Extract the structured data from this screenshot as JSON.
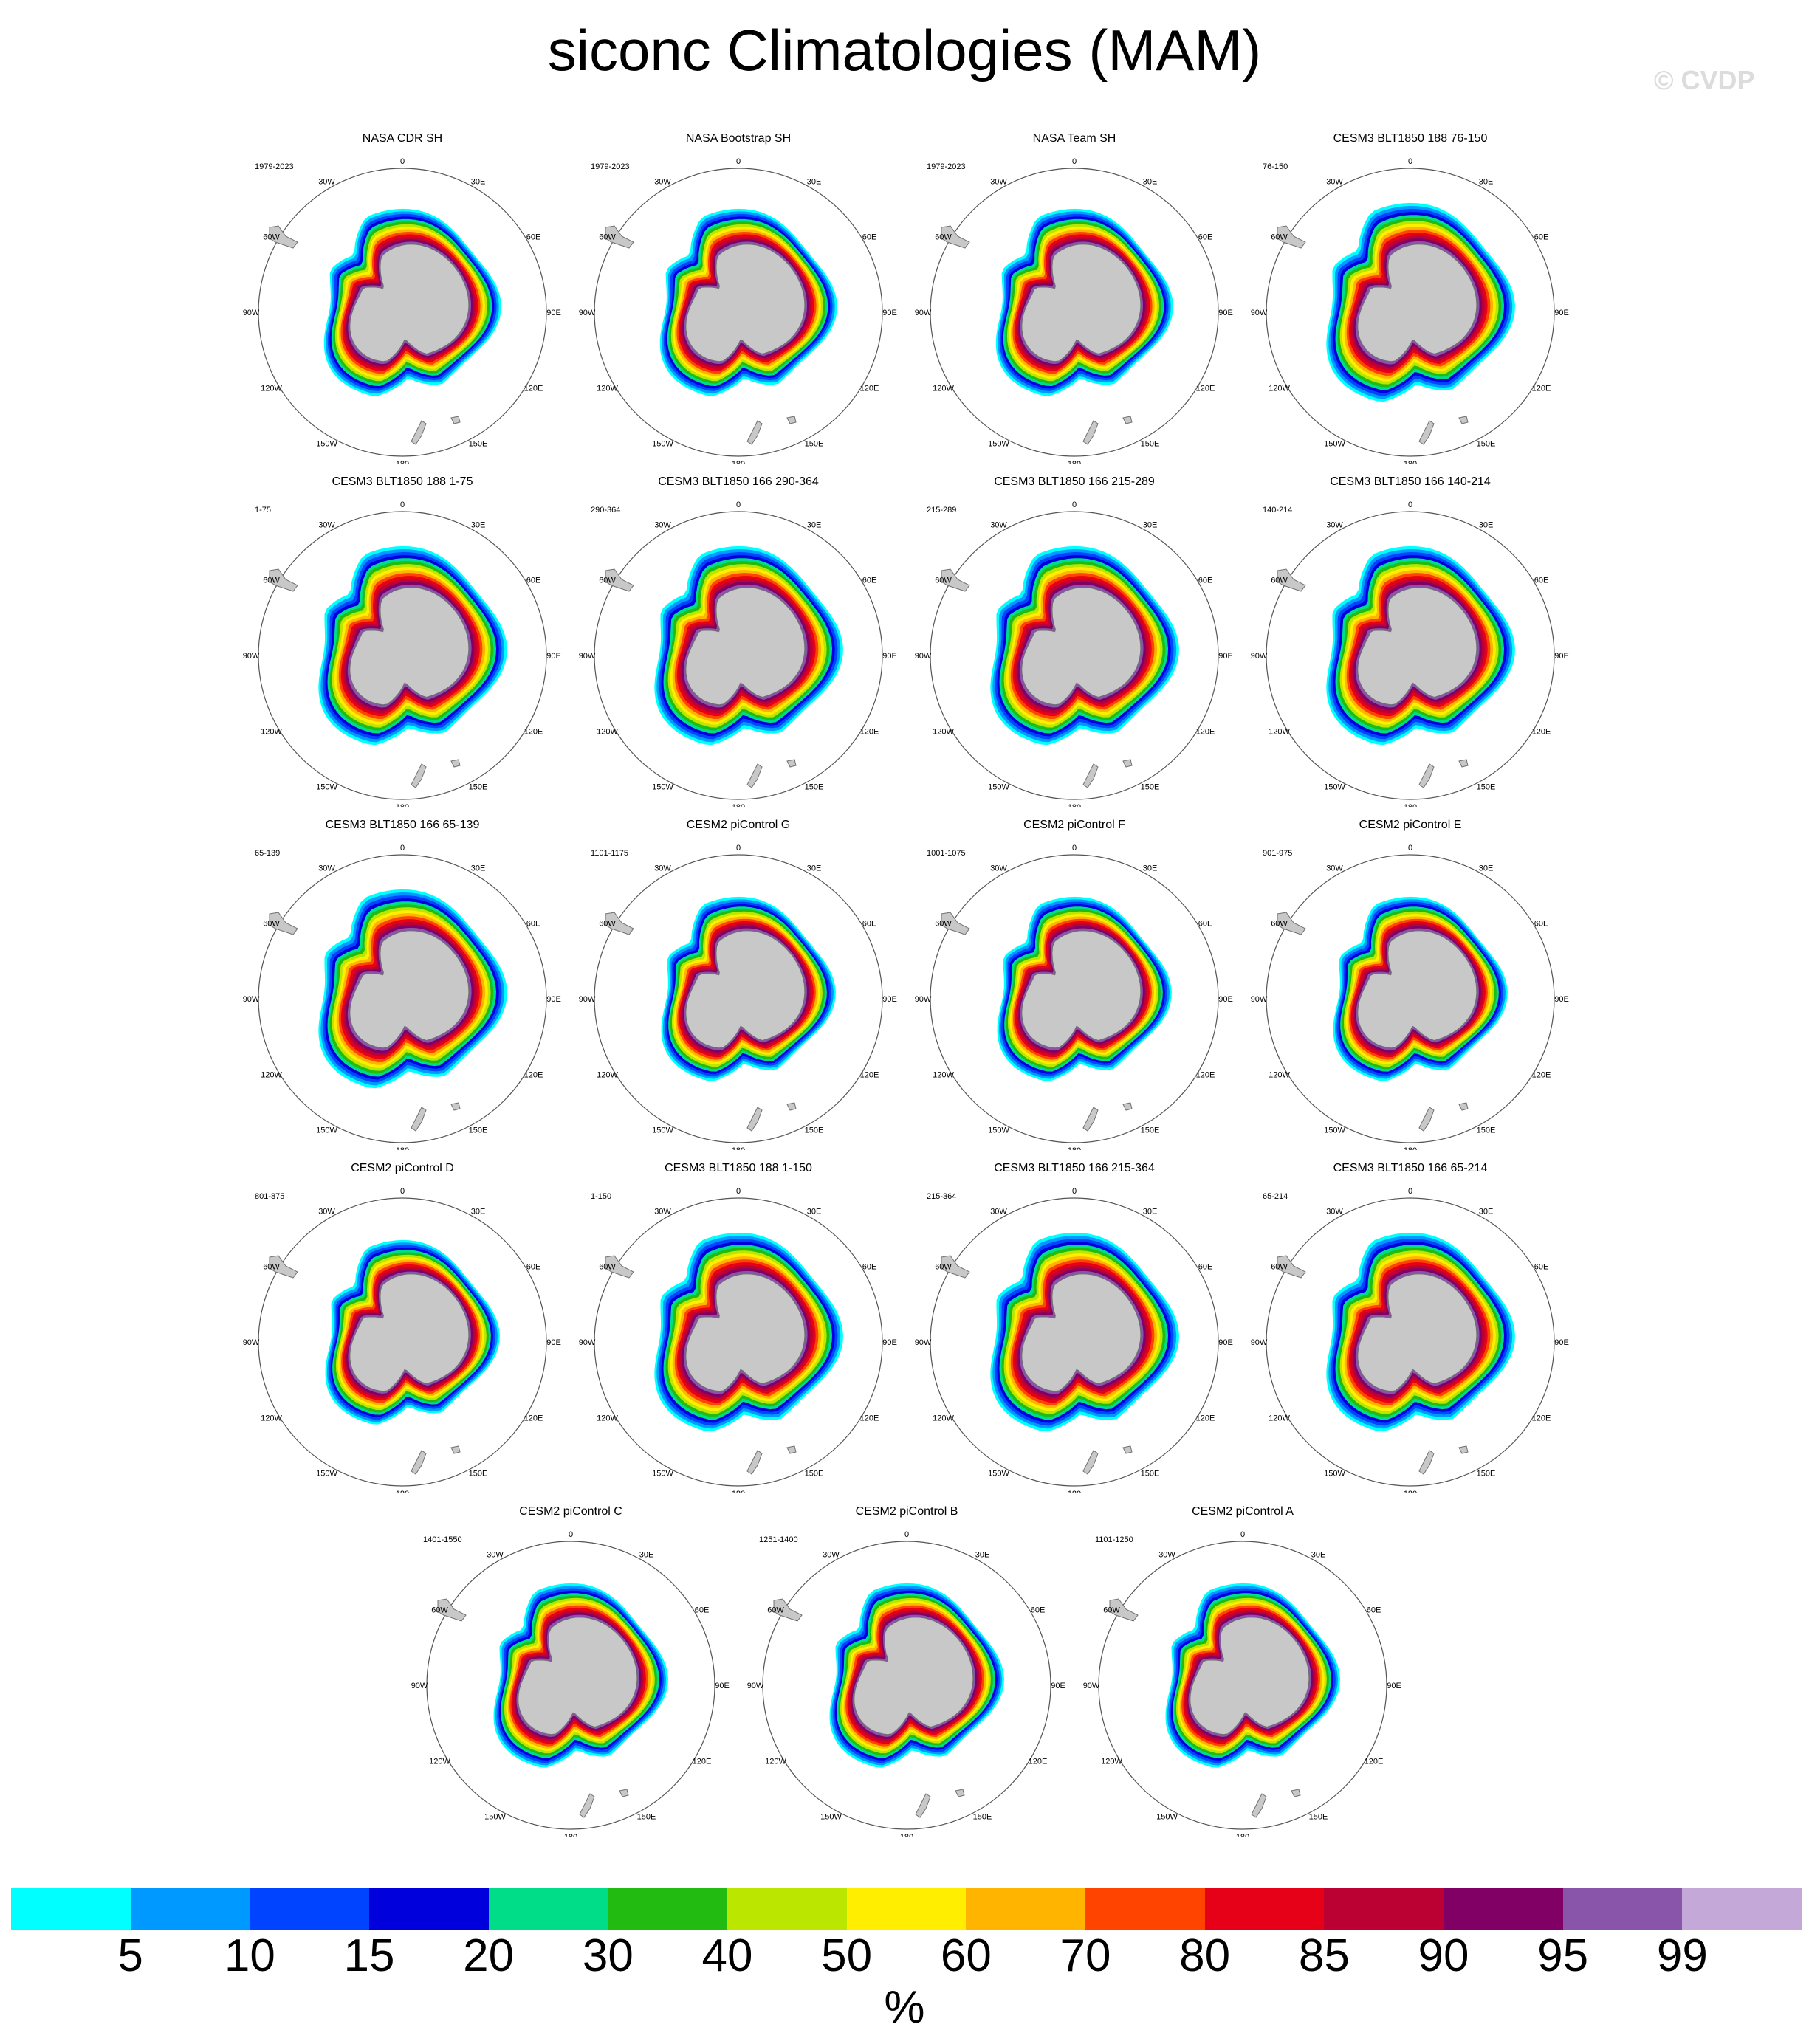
{
  "title": "siconc Climatologies (MAM)",
  "watermark": "© CVDP",
  "lon_labels": [
    "0",
    "30E",
    "60E",
    "90E",
    "120E",
    "150E",
    "180",
    "150W",
    "120W",
    "90W",
    "60W",
    "30W"
  ],
  "panels": [
    {
      "title": "NASA CDR SH",
      "years": "1979-2023",
      "variant": 0
    },
    {
      "title": "NASA Bootstrap SH",
      "years": "1979-2023",
      "variant": 0
    },
    {
      "title": "NASA Team SH",
      "years": "1979-2023",
      "variant": 0
    },
    {
      "title": "CESM3 BLT1850 188 76-150",
      "years": "76-150",
      "variant": 1
    },
    {
      "title": "CESM3 BLT1850 188 1-75",
      "years": "1-75",
      "variant": 1
    },
    {
      "title": "CESM3 BLT1850 166 290-364",
      "years": "290-364",
      "variant": 1
    },
    {
      "title": "CESM3 BLT1850 166 215-289",
      "years": "215-289",
      "variant": 1
    },
    {
      "title": "CESM3 BLT1850 166 140-214",
      "years": "140-214",
      "variant": 1
    },
    {
      "title": "CESM3 BLT1850 166 65-139",
      "years": "65-139",
      "variant": 1
    },
    {
      "title": "CESM2 piControl G",
      "years": "1101-1175",
      "variant": 2
    },
    {
      "title": "CESM2 piControl F",
      "years": "1001-1075",
      "variant": 2
    },
    {
      "title": "CESM2 piControl E",
      "years": "901-975",
      "variant": 2
    },
    {
      "title": "CESM2 piControl D",
      "years": "801-875",
      "variant": 2
    },
    {
      "title": "CESM3 BLT1850 188 1-150",
      "years": "1-150",
      "variant": 1
    },
    {
      "title": "CESM3 BLT1850 166 215-364",
      "years": "215-364",
      "variant": 1
    },
    {
      "title": "CESM3 BLT1850 166 65-214",
      "years": "65-214",
      "variant": 1
    },
    {
      "title": "CESM2 piControl C",
      "years": "1401-1550",
      "variant": 2
    },
    {
      "title": "CESM2 piControl B",
      "years": "1251-1400",
      "variant": 2
    },
    {
      "title": "CESM2 piControl A",
      "years": "1101-1250",
      "variant": 2
    }
  ],
  "colorbar": {
    "units": "%",
    "ticks": [
      "5",
      "10",
      "15",
      "20",
      "30",
      "40",
      "50",
      "60",
      "70",
      "80",
      "85",
      "90",
      "95",
      "99"
    ],
    "colors": [
      "#00ffff",
      "#0099ff",
      "#0044ff",
      "#0000dd",
      "#00dd88",
      "#22bb11",
      "#bbe600",
      "#ffee00",
      "#ffb400",
      "#ff4400",
      "#e60018",
      "#bb0033",
      "#800066",
      "#8855aa",
      "#c4a8d8"
    ]
  },
  "colors": {
    "land": "#c8c8c8",
    "land_edge": "#707070",
    "ocean": "#ffffff"
  }
}
